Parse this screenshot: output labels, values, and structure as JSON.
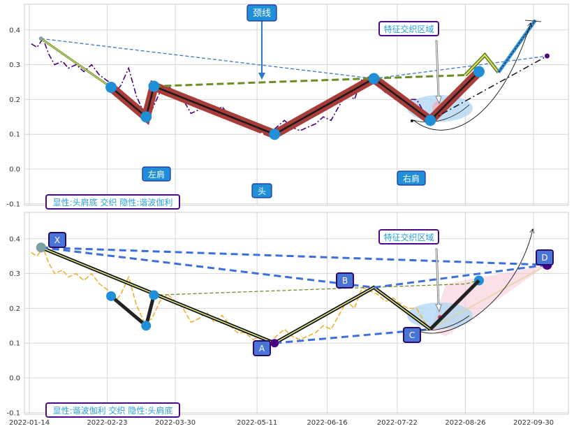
{
  "chart_data": [
    {
      "type": "line",
      "panel": "top",
      "x_ticks": [
        "2022-01-14",
        "2022-02-23",
        "2022-03-30",
        "2022-05-11",
        "2022-06-16",
        "2022-07-22",
        "2022-08-26",
        "2022-09-30"
      ],
      "y_ticks": [
        "-0.1",
        "0.0",
        "0.1",
        "0.2",
        "0.3",
        "0.4"
      ],
      "ylim": [
        -0.11,
        0.47
      ],
      "grid": true,
      "price_series": [
        [
          "2022-01-15",
          0.36
        ],
        [
          "2022-01-18",
          0.35
        ],
        [
          "2022-01-21",
          0.375
        ],
        [
          "2022-01-24",
          0.33
        ],
        [
          "2022-01-27",
          0.3
        ],
        [
          "2022-01-31",
          0.31
        ],
        [
          "2022-02-03",
          0.29
        ],
        [
          "2022-02-07",
          0.3
        ],
        [
          "2022-02-11",
          0.28
        ],
        [
          "2022-02-15",
          0.3
        ],
        [
          "2022-02-19",
          0.27
        ],
        [
          "2022-02-24",
          0.25
        ],
        [
          "2022-02-27",
          0.22
        ],
        [
          "2022-03-02",
          0.24
        ],
        [
          "2022-03-06",
          0.29
        ],
        [
          "2022-03-10",
          0.21
        ],
        [
          "2022-03-14",
          0.16
        ],
        [
          "2022-03-18",
          0.17
        ],
        [
          "2022-03-22",
          0.22
        ],
        [
          "2022-03-26",
          0.24
        ],
        [
          "2022-03-30",
          0.22
        ],
        [
          "2022-04-03",
          0.2
        ],
        [
          "2022-04-07",
          0.16
        ],
        [
          "2022-04-11",
          0.17
        ],
        [
          "2022-04-15",
          0.19
        ],
        [
          "2022-04-19",
          0.16
        ],
        [
          "2022-04-23",
          0.18
        ],
        [
          "2022-04-27",
          0.15
        ],
        [
          "2022-05-01",
          0.13
        ],
        [
          "2022-05-05",
          0.13
        ],
        [
          "2022-05-09",
          0.11
        ],
        [
          "2022-05-13",
          0.12
        ],
        [
          "2022-05-17",
          0.1
        ],
        [
          "2022-05-21",
          0.12
        ],
        [
          "2022-05-25",
          0.14
        ],
        [
          "2022-05-29",
          0.12
        ],
        [
          "2022-06-02",
          0.11
        ],
        [
          "2022-06-06",
          0.12
        ],
        [
          "2022-06-10",
          0.13
        ],
        [
          "2022-06-14",
          0.15
        ],
        [
          "2022-06-18",
          0.14
        ],
        [
          "2022-06-22",
          0.18
        ],
        [
          "2022-06-26",
          0.22
        ],
        [
          "2022-06-30",
          0.2
        ],
        [
          "2022-07-04",
          0.26
        ],
        [
          "2022-07-08",
          0.25
        ],
        [
          "2022-07-12",
          0.24
        ],
        [
          "2022-07-16",
          0.22
        ],
        [
          "2022-07-20",
          0.23
        ],
        [
          "2022-07-24",
          0.21
        ],
        [
          "2022-07-28",
          0.2
        ],
        [
          "2022-08-01",
          0.2
        ],
        [
          "2022-08-05",
          0.16
        ],
        [
          "2022-08-08",
          0.14
        ]
      ],
      "pattern_nodes": [
        [
          "2022-02-25",
          0.235
        ],
        [
          "2022-03-15",
          0.15
        ],
        [
          "2022-03-19",
          0.238
        ],
        [
          "2022-05-20",
          0.1
        ],
        [
          "2022-07-10",
          0.26
        ],
        [
          "2022-08-08",
          0.14
        ],
        [
          "2022-09-02",
          0.28
        ]
      ],
      "neckline": [
        [
          "2022-03-19",
          0.238
        ],
        [
          "2022-08-26",
          0.27
        ]
      ],
      "projection": [
        [
          "2022-08-26",
          0.27
        ],
        [
          "2022-09-05",
          0.328
        ],
        [
          "2022-09-12",
          0.278
        ],
        [
          "2022-10-01",
          0.428
        ]
      ],
      "dashed_trend": [
        [
          "2022-01-20",
          0.375
        ],
        [
          "2022-07-10",
          0.26
        ],
        [
          "2022-10-07",
          0.325
        ]
      ],
      "dashdot": [
        [
          "2022-08-08",
          0.14
        ],
        [
          "2022-10-07",
          0.325
        ]
      ],
      "labels": {
        "neckline": "颈线",
        "left_shoulder": "左肩",
        "head": "头",
        "right_shoulder": "右肩",
        "overlap_zone": "特征交织区域",
        "panel_caption": "显性:头肩底 交织 隐性:谐波伽利"
      }
    },
    {
      "type": "line",
      "panel": "bottom",
      "x_ticks": [
        "2022-01-14",
        "2022-02-23",
        "2022-03-30",
        "2022-05-11",
        "2022-06-16",
        "2022-07-22",
        "2022-08-26",
        "2022-09-30"
      ],
      "y_ticks": [
        "-0.1",
        "0.0",
        "0.1",
        "0.2",
        "0.3",
        "0.4"
      ],
      "ylim": [
        -0.11,
        0.47
      ],
      "grid": true,
      "points": {
        "X": [
          "2022-01-20",
          0.375
        ],
        "A": [
          "2022-05-20",
          0.1
        ],
        "B": [
          "2022-07-10",
          0.26
        ],
        "C": [
          "2022-08-08",
          0.14
        ],
        "D": [
          "2022-10-07",
          0.325
        ]
      },
      "labels": {
        "X": "X",
        "A": "A",
        "B": "B",
        "C": "C",
        "D": "D",
        "overlap_zone": "特征交织区域",
        "panel_caption": "显性:谐波伽利 交织 隐性:头肩底"
      }
    }
  ]
}
